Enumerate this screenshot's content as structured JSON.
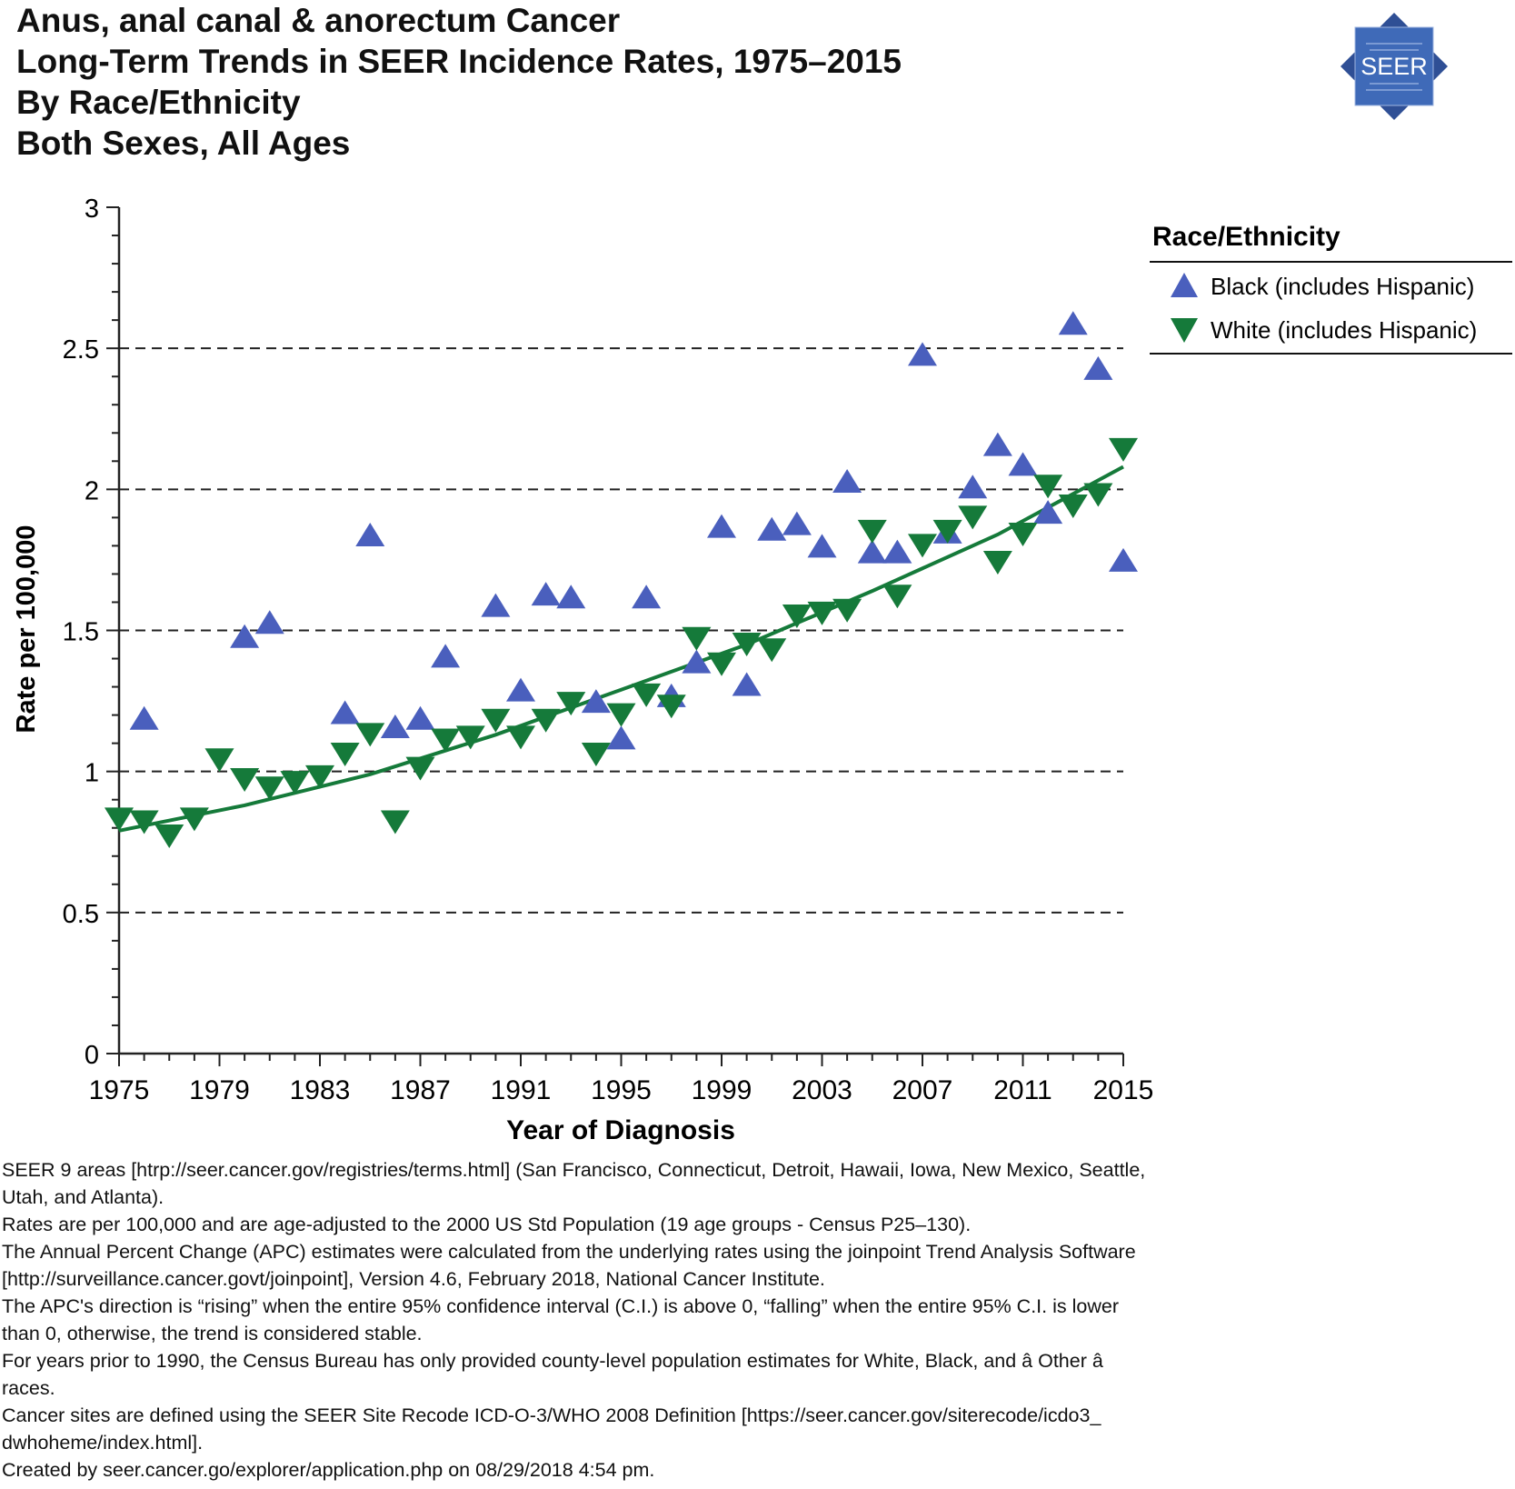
{
  "header": {
    "title_lines": [
      "Anus, anal canal & anorectum Cancer",
      "Long-Term Trends in SEER Incidence Rates, 1975–2015",
      "By Race/Ethnicity",
      "Both Sexes, All Ages"
    ],
    "logo_text": "SEER"
  },
  "chart_data": {
    "type": "scatter",
    "title": "Anus, anal canal & anorectum Cancer Long-Term Trends in SEER Incidence Rates, 1975–2015 By Race/Ethnicity Both Sexes, All Ages",
    "xlabel": "Year of Diagnosis",
    "ylabel": "Rate per 100,000",
    "xlim": [
      1975,
      2015
    ],
    "ylim": [
      0,
      3
    ],
    "x_ticks": [
      1975,
      1979,
      1983,
      1987,
      1991,
      1995,
      1999,
      2003,
      2007,
      2011,
      2015
    ],
    "y_ticks": [
      0,
      0.5,
      1,
      1.5,
      2,
      2.5,
      3
    ],
    "y_tick_labels": [
      "0",
      "0.5",
      "1",
      "1.5",
      "2",
      "2.5",
      "3"
    ],
    "gridlines": [
      0.5,
      1,
      1.5,
      2,
      2.5
    ],
    "legend": {
      "title": "Race/Ethnicity",
      "position": "right",
      "entries": [
        "Black (includes Hispanic)",
        "White (includes Hispanic)"
      ]
    },
    "series": [
      {
        "name": "Black (includes Hispanic)",
        "marker": "triangle-up",
        "color": "#4a5fbd",
        "x": [
          1976,
          1980,
          1981,
          1984,
          1985,
          1986,
          1987,
          1988,
          1990,
          1991,
          1992,
          1993,
          1994,
          1995,
          1996,
          1997,
          1998,
          1999,
          2000,
          2001,
          2002,
          2003,
          2004,
          2005,
          2006,
          2007,
          2008,
          2009,
          2010,
          2011,
          2012,
          2013,
          2014,
          2015
        ],
        "values": [
          1.19,
          1.48,
          1.53,
          1.21,
          1.84,
          1.16,
          1.19,
          1.41,
          1.59,
          1.29,
          1.63,
          1.62,
          1.25,
          1.12,
          1.62,
          1.27,
          1.39,
          1.87,
          1.31,
          1.86,
          1.88,
          1.8,
          2.03,
          1.78,
          1.78,
          2.48,
          1.85,
          2.01,
          2.16,
          2.09,
          1.92,
          2.59,
          2.43,
          1.75
        ]
      },
      {
        "name": "White (includes Hispanic)",
        "marker": "triangle-down",
        "color": "#157a3a",
        "x": [
          1975,
          1976,
          1977,
          1978,
          1979,
          1980,
          1981,
          1982,
          1983,
          1984,
          1985,
          1986,
          1987,
          1988,
          1989,
          1990,
          1991,
          1992,
          1993,
          1994,
          1995,
          1996,
          1997,
          1998,
          1999,
          2000,
          2001,
          2002,
          2003,
          2004,
          2005,
          2006,
          2007,
          2008,
          2009,
          2010,
          2011,
          2012,
          2013,
          2014,
          2015
        ],
        "values": [
          0.83,
          0.82,
          0.77,
          0.83,
          1.04,
          0.97,
          0.94,
          0.96,
          0.98,
          1.06,
          1.13,
          0.82,
          1.01,
          1.11,
          1.12,
          1.18,
          1.12,
          1.18,
          1.24,
          1.06,
          1.2,
          1.27,
          1.23,
          1.47,
          1.38,
          1.45,
          1.43,
          1.55,
          1.56,
          1.57,
          1.85,
          1.62,
          1.8,
          1.85,
          1.9,
          1.74,
          1.84,
          2.01,
          1.94,
          1.98,
          2.14
        ]
      },
      {
        "name": "White (includes Hispanic) trend",
        "type": "line",
        "color": "#157a3a",
        "x": [
          1975,
          1980,
          1985,
          1990,
          1995,
          2000,
          2005,
          2010,
          2015
        ],
        "values": [
          0.79,
          0.88,
          0.99,
          1.13,
          1.29,
          1.45,
          1.64,
          1.84,
          2.08
        ]
      }
    ]
  },
  "footnotes": [
    "SEER 9 areas [htrp://seer.cancer.gov/registries/terms.html] (San Francisco, Connecticut, Detroit, Hawaii, Iowa, New Mexico, Seattle,",
    "Utah, and Atlanta).",
    "Rates are per 100,000 and are age-adjusted to the 2000 US Std Population (19 age groups - Census P25–130).",
    "The Annual Percent Change (APC) estimates were calculated from the underlying rates using the joinpoint Trend Analysis Software",
    "[http://surveillance.cancer.govt/joinpoint], Version 4.6, February 2018, National Cancer Institute.",
    "The APC's direction is “rising” when the entire 95% confidence interval (C.I.) is above 0, “falling” when the entire 95% C.I. is lower",
    "than 0, otherwise, the trend is considered stable.",
    "For years prior to 1990, the Census Bureau has only provided county-level population estimates for White, Black, and â Other â",
    "races.",
    "Cancer sites are defined using the SEER Site Recode ICD-O-3/WHO 2008 Definition [https://seer.cancer.gov/siterecode/icdo3_",
    "dwhoheme/index.html].",
    "Created by seer.cancer.go/explorer/application.php on 08/29/2018 4:54 pm."
  ]
}
